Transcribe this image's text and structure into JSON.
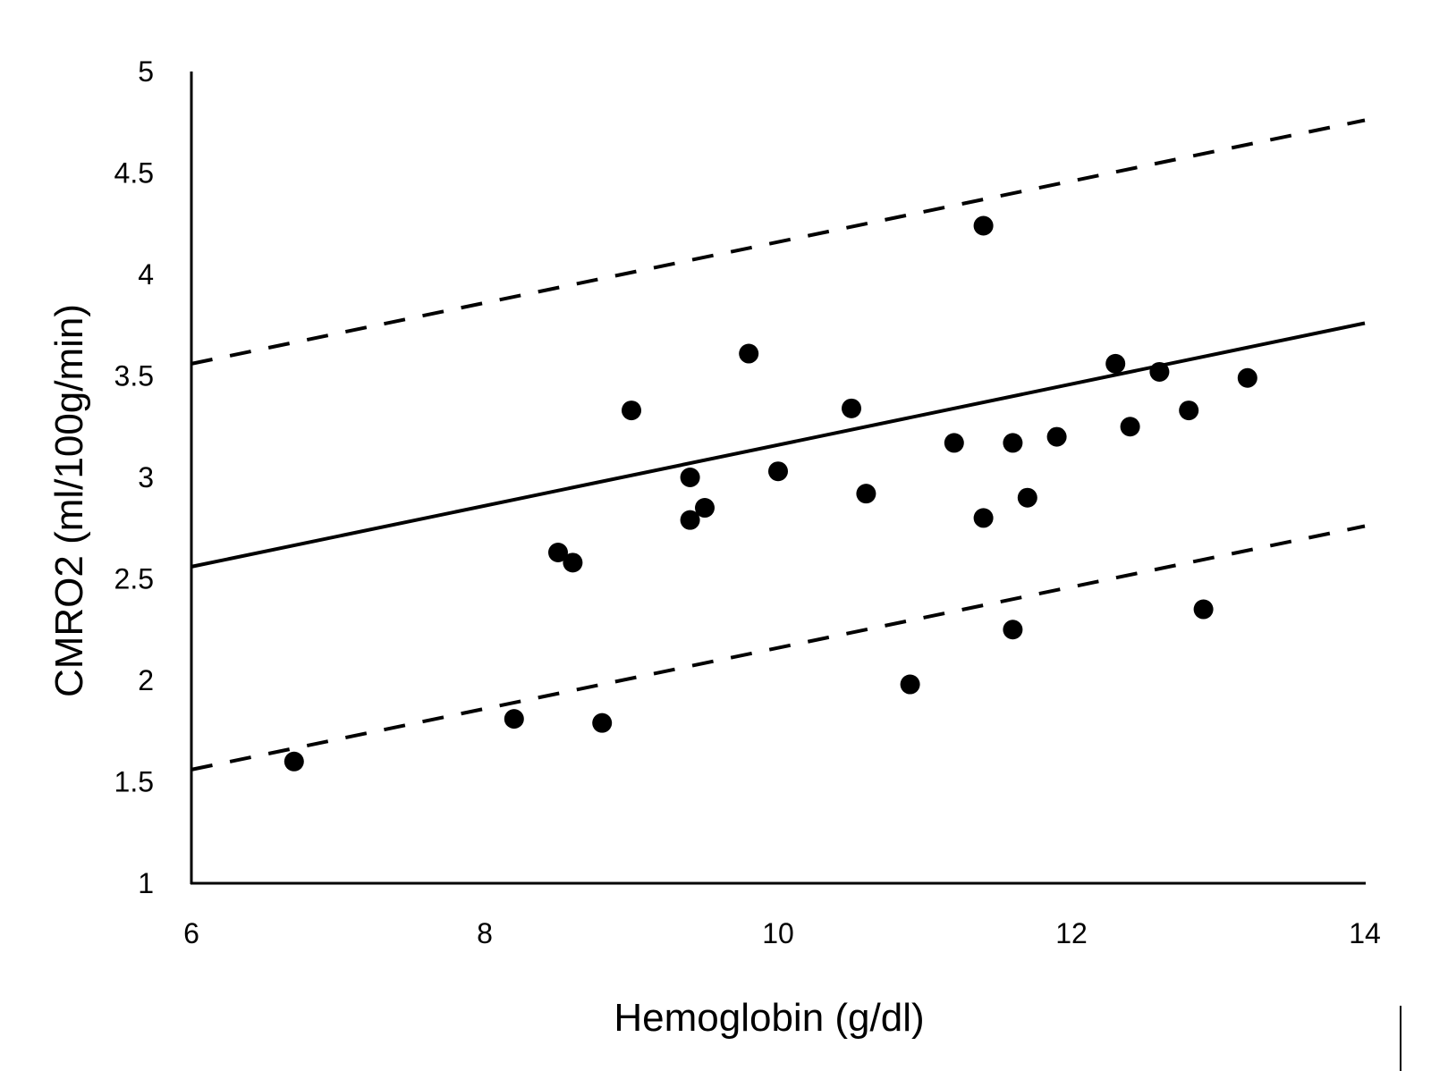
{
  "chart_data": {
    "type": "scatter",
    "title": "",
    "xlabel": "Hemoglobin (g/dl)",
    "ylabel": "CMRO2 (ml/100g/min)",
    "xlim": [
      6,
      14
    ],
    "ylim": [
      1,
      5
    ],
    "xticks": [
      "6",
      "8",
      "10",
      "12",
      "14"
    ],
    "yticks": [
      "1",
      "1.5",
      "2",
      "2.5",
      "3",
      "3.5",
      "4",
      "4.5",
      "5"
    ],
    "grid": false,
    "legend": "none",
    "points": [
      {
        "x": 6.7,
        "y": 1.6
      },
      {
        "x": 8.2,
        "y": 1.81
      },
      {
        "x": 8.8,
        "y": 1.79
      },
      {
        "x": 8.5,
        "y": 2.63
      },
      {
        "x": 8.6,
        "y": 2.58
      },
      {
        "x": 9.0,
        "y": 3.33
      },
      {
        "x": 9.4,
        "y": 3.0
      },
      {
        "x": 9.4,
        "y": 2.79
      },
      {
        "x": 9.5,
        "y": 2.85
      },
      {
        "x": 9.8,
        "y": 3.61
      },
      {
        "x": 10.0,
        "y": 3.03
      },
      {
        "x": 10.5,
        "y": 3.34
      },
      {
        "x": 10.6,
        "y": 2.92
      },
      {
        "x": 10.9,
        "y": 1.98
      },
      {
        "x": 11.2,
        "y": 3.17
      },
      {
        "x": 11.4,
        "y": 4.24
      },
      {
        "x": 11.4,
        "y": 2.8
      },
      {
        "x": 11.6,
        "y": 3.17
      },
      {
        "x": 11.6,
        "y": 2.25
      },
      {
        "x": 11.7,
        "y": 2.9
      },
      {
        "x": 11.9,
        "y": 3.2
      },
      {
        "x": 12.3,
        "y": 3.56
      },
      {
        "x": 12.4,
        "y": 3.25
      },
      {
        "x": 12.6,
        "y": 3.52
      },
      {
        "x": 12.8,
        "y": 3.33
      },
      {
        "x": 12.9,
        "y": 2.35
      },
      {
        "x": 13.2,
        "y": 3.49
      }
    ],
    "lines": [
      {
        "name": "regression",
        "style": "solid",
        "from": [
          6,
          2.56
        ],
        "to": [
          14,
          3.76
        ]
      },
      {
        "name": "upper-bound",
        "style": "dashed",
        "from": [
          6,
          3.56
        ],
        "to": [
          14,
          4.76
        ]
      },
      {
        "name": "lower-bound",
        "style": "dashed",
        "from": [
          6,
          1.56
        ],
        "to": [
          14,
          2.76
        ]
      }
    ]
  }
}
